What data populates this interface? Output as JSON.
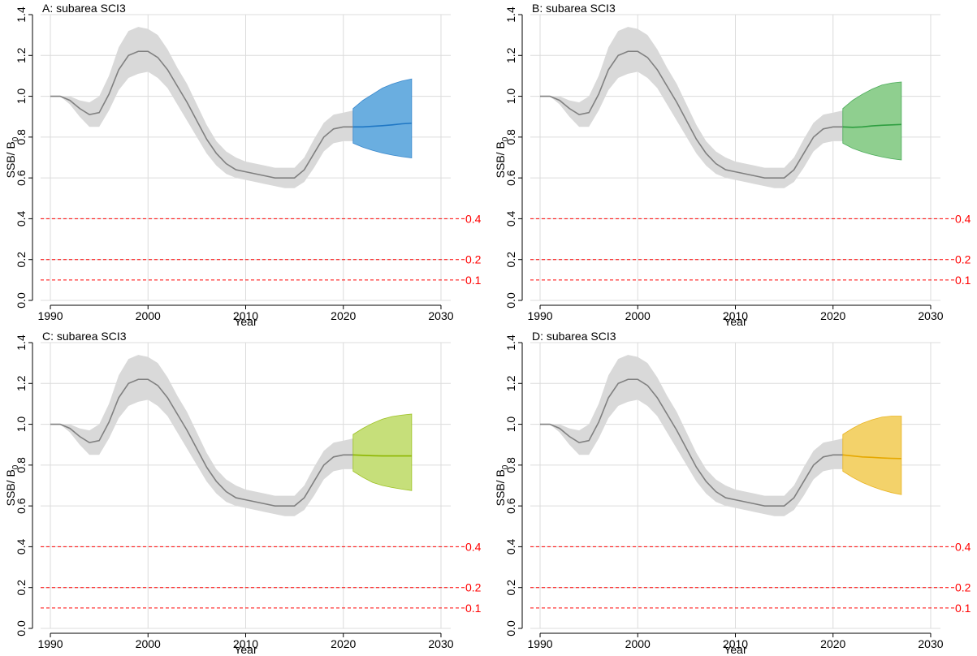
{
  "chart_data": [
    {
      "type": "line",
      "title": "A: subarea SCI3",
      "xlabel": "Year",
      "ylabel_main": "SSB/ B",
      "ylabel_sub": "0",
      "xlim": [
        1989,
        2031
      ],
      "ylim": [
        0,
        1.4
      ],
      "x_ticks": [
        1990,
        2000,
        2010,
        2020,
        2030
      ],
      "y_ticks": [
        0.0,
        0.2,
        0.4,
        0.6,
        0.8,
        1.0,
        1.2,
        1.4
      ],
      "y_tick_labels": [
        "0.0",
        "0.2",
        "0.4",
        "0.6",
        "0.8",
        "1.0",
        "1.2",
        "1.4"
      ],
      "grid": true,
      "historical": {
        "x": [
          1990,
          1991,
          1992,
          1993,
          1994,
          1995,
          1996,
          1997,
          1998,
          1999,
          2000,
          2001,
          2002,
          2003,
          2004,
          2005,
          2006,
          2007,
          2008,
          2009,
          2010,
          2011,
          2012,
          2013,
          2014,
          2015,
          2016,
          2017,
          2018,
          2019,
          2020,
          2021
        ],
        "median": [
          1.0,
          1.0,
          0.98,
          0.94,
          0.91,
          0.92,
          1.01,
          1.13,
          1.2,
          1.22,
          1.22,
          1.19,
          1.13,
          1.05,
          0.97,
          0.88,
          0.79,
          0.72,
          0.67,
          0.64,
          0.63,
          0.62,
          0.61,
          0.6,
          0.6,
          0.6,
          0.64,
          0.72,
          0.8,
          0.84,
          0.85,
          0.85
        ],
        "lower": [
          1.0,
          1.0,
          0.96,
          0.9,
          0.85,
          0.85,
          0.93,
          1.03,
          1.09,
          1.11,
          1.12,
          1.09,
          1.04,
          0.96,
          0.88,
          0.8,
          0.72,
          0.66,
          0.62,
          0.6,
          0.59,
          0.58,
          0.57,
          0.56,
          0.55,
          0.55,
          0.58,
          0.65,
          0.73,
          0.77,
          0.78,
          0.78
        ],
        "upper": [
          1.0,
          1.0,
          1.0,
          0.98,
          0.97,
          1.0,
          1.1,
          1.24,
          1.32,
          1.34,
          1.33,
          1.3,
          1.23,
          1.14,
          1.06,
          0.96,
          0.86,
          0.78,
          0.73,
          0.7,
          0.68,
          0.67,
          0.66,
          0.65,
          0.65,
          0.65,
          0.7,
          0.79,
          0.87,
          0.91,
          0.92,
          0.93
        ],
        "color": "#808080",
        "band_color": "#d9d9d9"
      },
      "projection": {
        "x": [
          2021,
          2022,
          2023,
          2024,
          2025,
          2026,
          2027
        ],
        "median": [
          0.85,
          0.85,
          0.853,
          0.856,
          0.86,
          0.865,
          0.868
        ],
        "lower": [
          0.77,
          0.75,
          0.735,
          0.722,
          0.712,
          0.704,
          0.698
        ],
        "upper": [
          0.94,
          0.98,
          1.01,
          1.04,
          1.06,
          1.075,
          1.085
        ],
        "color": "#1f77c4",
        "band_color": "#6aaee0"
      },
      "ref_lines": [
        {
          "y": 0.4,
          "label": "0.4",
          "color": "#ff0000"
        },
        {
          "y": 0.2,
          "label": "0.2",
          "color": "#ff0000"
        },
        {
          "y": 0.1,
          "label": "0.1",
          "color": "#ff0000"
        }
      ]
    },
    {
      "type": "line",
      "title": "B: subarea SCI3",
      "xlabel": "Year",
      "ylabel_main": "SSB/ B",
      "ylabel_sub": "0",
      "xlim": [
        1989,
        2031
      ],
      "ylim": [
        0,
        1.4
      ],
      "x_ticks": [
        1990,
        2000,
        2010,
        2020,
        2030
      ],
      "y_ticks": [
        0.0,
        0.2,
        0.4,
        0.6,
        0.8,
        1.0,
        1.2,
        1.4
      ],
      "y_tick_labels": [
        "0.0",
        "0.2",
        "0.4",
        "0.6",
        "0.8",
        "1.0",
        "1.2",
        "1.4"
      ],
      "grid": true,
      "historical": {
        "x": [
          1990,
          1991,
          1992,
          1993,
          1994,
          1995,
          1996,
          1997,
          1998,
          1999,
          2000,
          2001,
          2002,
          2003,
          2004,
          2005,
          2006,
          2007,
          2008,
          2009,
          2010,
          2011,
          2012,
          2013,
          2014,
          2015,
          2016,
          2017,
          2018,
          2019,
          2020,
          2021
        ],
        "median": [
          1.0,
          1.0,
          0.98,
          0.94,
          0.91,
          0.92,
          1.01,
          1.13,
          1.2,
          1.22,
          1.22,
          1.19,
          1.13,
          1.05,
          0.97,
          0.88,
          0.79,
          0.72,
          0.67,
          0.64,
          0.63,
          0.62,
          0.61,
          0.6,
          0.6,
          0.6,
          0.64,
          0.72,
          0.8,
          0.84,
          0.85,
          0.85
        ],
        "lower": [
          1.0,
          1.0,
          0.96,
          0.9,
          0.85,
          0.85,
          0.93,
          1.03,
          1.09,
          1.11,
          1.12,
          1.09,
          1.04,
          0.96,
          0.88,
          0.8,
          0.72,
          0.66,
          0.62,
          0.6,
          0.59,
          0.58,
          0.57,
          0.56,
          0.55,
          0.55,
          0.58,
          0.65,
          0.73,
          0.77,
          0.78,
          0.78
        ],
        "upper": [
          1.0,
          1.0,
          1.0,
          0.98,
          0.97,
          1.0,
          1.1,
          1.24,
          1.32,
          1.34,
          1.33,
          1.3,
          1.23,
          1.14,
          1.06,
          0.96,
          0.86,
          0.78,
          0.73,
          0.7,
          0.68,
          0.67,
          0.66,
          0.65,
          0.65,
          0.65,
          0.7,
          0.79,
          0.87,
          0.91,
          0.92,
          0.93
        ],
        "color": "#808080",
        "band_color": "#d9d9d9"
      },
      "projection": {
        "x": [
          2021,
          2022,
          2023,
          2024,
          2025,
          2026,
          2027
        ],
        "median": [
          0.85,
          0.848,
          0.85,
          0.855,
          0.858,
          0.86,
          0.862
        ],
        "lower": [
          0.77,
          0.745,
          0.728,
          0.714,
          0.703,
          0.694,
          0.688
        ],
        "upper": [
          0.94,
          0.98,
          1.01,
          1.035,
          1.055,
          1.065,
          1.07
        ],
        "color": "#2e9e40",
        "band_color": "#8fcf8f"
      },
      "ref_lines": [
        {
          "y": 0.4,
          "label": "0.4",
          "color": "#ff0000"
        },
        {
          "y": 0.2,
          "label": "0.2",
          "color": "#ff0000"
        },
        {
          "y": 0.1,
          "label": "0.1",
          "color": "#ff0000"
        }
      ]
    },
    {
      "type": "line",
      "title": "C: subarea SCI3",
      "xlabel": "Year",
      "ylabel_main": "SSB/ B",
      "ylabel_sub": "0",
      "xlim": [
        1989,
        2031
      ],
      "ylim": [
        0,
        1.4
      ],
      "x_ticks": [
        1990,
        2000,
        2010,
        2020,
        2030
      ],
      "y_ticks": [
        0.0,
        0.2,
        0.4,
        0.6,
        0.8,
        1.0,
        1.2,
        1.4
      ],
      "y_tick_labels": [
        "0.0",
        "0.2",
        "0.4",
        "0.6",
        "0.8",
        "1.0",
        "1.2",
        "1.4"
      ],
      "grid": true,
      "historical": {
        "x": [
          1990,
          1991,
          1992,
          1993,
          1994,
          1995,
          1996,
          1997,
          1998,
          1999,
          2000,
          2001,
          2002,
          2003,
          2004,
          2005,
          2006,
          2007,
          2008,
          2009,
          2010,
          2011,
          2012,
          2013,
          2014,
          2015,
          2016,
          2017,
          2018,
          2019,
          2020,
          2021
        ],
        "median": [
          1.0,
          1.0,
          0.98,
          0.94,
          0.91,
          0.92,
          1.01,
          1.13,
          1.2,
          1.22,
          1.22,
          1.19,
          1.13,
          1.05,
          0.97,
          0.88,
          0.79,
          0.72,
          0.67,
          0.64,
          0.63,
          0.62,
          0.61,
          0.6,
          0.6,
          0.6,
          0.64,
          0.72,
          0.8,
          0.84,
          0.85,
          0.85
        ],
        "lower": [
          1.0,
          1.0,
          0.96,
          0.9,
          0.85,
          0.85,
          0.93,
          1.03,
          1.09,
          1.11,
          1.12,
          1.09,
          1.04,
          0.96,
          0.88,
          0.8,
          0.72,
          0.66,
          0.62,
          0.6,
          0.59,
          0.58,
          0.57,
          0.56,
          0.55,
          0.55,
          0.58,
          0.65,
          0.73,
          0.77,
          0.78,
          0.78
        ],
        "upper": [
          1.0,
          1.0,
          1.0,
          0.98,
          0.97,
          1.0,
          1.1,
          1.24,
          1.32,
          1.34,
          1.33,
          1.3,
          1.23,
          1.14,
          1.06,
          0.96,
          0.86,
          0.78,
          0.73,
          0.7,
          0.68,
          0.67,
          0.66,
          0.65,
          0.65,
          0.65,
          0.7,
          0.79,
          0.87,
          0.91,
          0.92,
          0.93
        ],
        "color": "#808080",
        "band_color": "#d9d9d9"
      },
      "projection": {
        "x": [
          2021,
          2022,
          2023,
          2024,
          2025,
          2026,
          2027
        ],
        "median": [
          0.85,
          0.848,
          0.846,
          0.845,
          0.845,
          0.845,
          0.845
        ],
        "lower": [
          0.77,
          0.74,
          0.715,
          0.7,
          0.69,
          0.682,
          0.675
        ],
        "upper": [
          0.95,
          0.98,
          1.005,
          1.025,
          1.038,
          1.045,
          1.05
        ],
        "color": "#8db600",
        "band_color": "#c6df7a"
      },
      "ref_lines": [
        {
          "y": 0.4,
          "label": "0.4",
          "color": "#ff0000"
        },
        {
          "y": 0.2,
          "label": "0.2",
          "color": "#ff0000"
        },
        {
          "y": 0.1,
          "label": "0.1",
          "color": "#ff0000"
        }
      ]
    },
    {
      "type": "line",
      "title": "D: subarea SCI3",
      "xlabel": "Year",
      "ylabel_main": "SSB/ B",
      "ylabel_sub": "0",
      "xlim": [
        1989,
        2031
      ],
      "ylim": [
        0,
        1.4
      ],
      "x_ticks": [
        1990,
        2000,
        2010,
        2020,
        2030
      ],
      "y_ticks": [
        0.0,
        0.2,
        0.4,
        0.6,
        0.8,
        1.0,
        1.2,
        1.4
      ],
      "y_tick_labels": [
        "0.0",
        "0.2",
        "0.4",
        "0.6",
        "0.8",
        "1.0",
        "1.2",
        "1.4"
      ],
      "grid": true,
      "historical": {
        "x": [
          1990,
          1991,
          1992,
          1993,
          1994,
          1995,
          1996,
          1997,
          1998,
          1999,
          2000,
          2001,
          2002,
          2003,
          2004,
          2005,
          2006,
          2007,
          2008,
          2009,
          2010,
          2011,
          2012,
          2013,
          2014,
          2015,
          2016,
          2017,
          2018,
          2019,
          2020,
          2021
        ],
        "median": [
          1.0,
          1.0,
          0.98,
          0.94,
          0.91,
          0.92,
          1.01,
          1.13,
          1.2,
          1.22,
          1.22,
          1.19,
          1.13,
          1.05,
          0.97,
          0.88,
          0.79,
          0.72,
          0.67,
          0.64,
          0.63,
          0.62,
          0.61,
          0.6,
          0.6,
          0.6,
          0.64,
          0.72,
          0.8,
          0.84,
          0.85,
          0.85
        ],
        "lower": [
          1.0,
          1.0,
          0.96,
          0.9,
          0.85,
          0.85,
          0.93,
          1.03,
          1.09,
          1.11,
          1.12,
          1.09,
          1.04,
          0.96,
          0.88,
          0.8,
          0.72,
          0.66,
          0.62,
          0.6,
          0.59,
          0.58,
          0.57,
          0.56,
          0.55,
          0.55,
          0.58,
          0.65,
          0.73,
          0.77,
          0.78,
          0.78
        ],
        "upper": [
          1.0,
          1.0,
          1.0,
          0.98,
          0.97,
          1.0,
          1.1,
          1.24,
          1.32,
          1.34,
          1.33,
          1.3,
          1.23,
          1.14,
          1.06,
          0.96,
          0.86,
          0.78,
          0.73,
          0.7,
          0.68,
          0.67,
          0.66,
          0.65,
          0.65,
          0.65,
          0.7,
          0.79,
          0.87,
          0.91,
          0.92,
          0.93
        ],
        "color": "#808080",
        "band_color": "#d9d9d9"
      },
      "projection": {
        "x": [
          2021,
          2022,
          2023,
          2024,
          2025,
          2026,
          2027
        ],
        "median": [
          0.85,
          0.845,
          0.84,
          0.838,
          0.835,
          0.833,
          0.832
        ],
        "lower": [
          0.77,
          0.74,
          0.715,
          0.695,
          0.678,
          0.665,
          0.655
        ],
        "upper": [
          0.95,
          0.98,
          1.005,
          1.022,
          1.035,
          1.04,
          1.04
        ],
        "color": "#e6a800",
        "band_color": "#f3d26a"
      },
      "ref_lines": [
        {
          "y": 0.4,
          "label": "0.4",
          "color": "#ff0000"
        },
        {
          "y": 0.2,
          "label": "0.2",
          "color": "#ff0000"
        },
        {
          "y": 0.1,
          "label": "0.1",
          "color": "#ff0000"
        }
      ]
    }
  ]
}
